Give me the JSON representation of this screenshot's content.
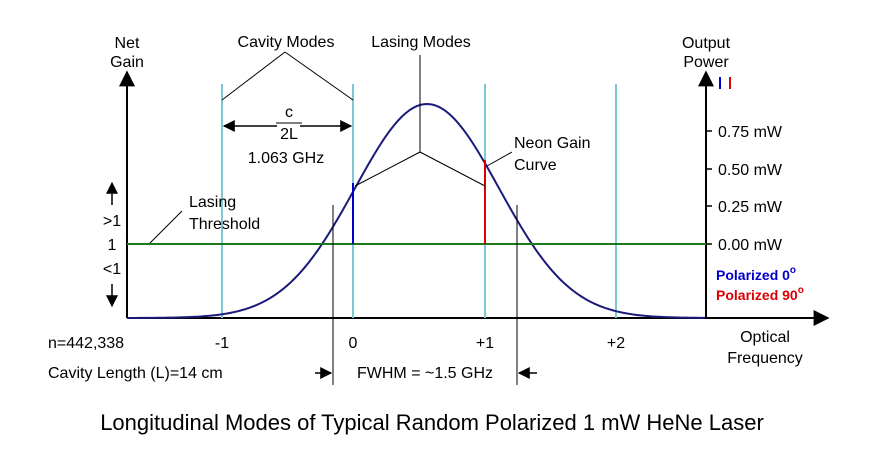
{
  "title": "Longitudinal Modes of Typical Random Polarized 1 mW HeNe Laser",
  "labels": {
    "net_gain_1": "Net",
    "net_gain_2": "Gain",
    "output_power_1": "Output",
    "output_power_2": "Power",
    "cavity_modes": "Cavity Modes",
    "lasing_modes": "Lasing Modes",
    "neon_gain_1": "Neon Gain",
    "neon_gain_2": "Curve",
    "lasing_threshold_1": "Lasing",
    "lasing_threshold_2": "Threshold",
    "spacing_numerator": "c",
    "spacing_denominator": "2L",
    "spacing_value": "1.063 GHz",
    "gain_above": ">1",
    "gain_equal": "1",
    "gain_below": "<1",
    "mode_number": "n=442,338",
    "cavity_length": "Cavity Length (L)=14 cm",
    "fwhm": "FWHM = ~1.5 GHz",
    "optical_frequency_1": "Optical",
    "optical_frequency_2": "Frequency",
    "polarized_0": "Polarized 0",
    "polarized_0_sup": "o",
    "polarized_90": "Polarized 90",
    "polarized_90_sup": "o"
  },
  "x_ticks": [
    "-1",
    "0",
    "+1",
    "+2"
  ],
  "power_ticks": [
    "0.75 mW",
    "0.50 mW",
    "0.25 mW",
    "0.00 mW"
  ],
  "colors": {
    "axis": "#000000",
    "gain_curve": "#1a1a7a",
    "cavity_mode": "#7ec8d4",
    "threshold": "#1a7a1a",
    "polarized_0": "#0000cc",
    "polarized_90": "#dd0000"
  }
}
